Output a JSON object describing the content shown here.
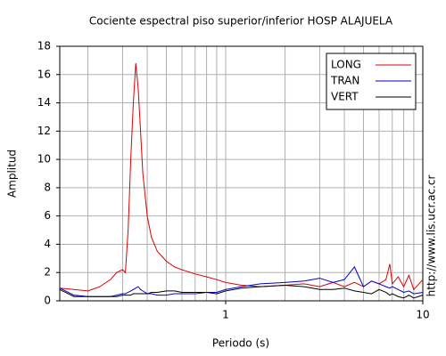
{
  "chart_data": {
    "type": "line",
    "title": "Cociente espectral piso superior/inferior  HOSP ALAJUELA",
    "x_label": "Periodo (s)",
    "y_label": "Amplitud",
    "annotation": "http://www.lis.ucr.ac.cr",
    "x_scale": "log",
    "grid": true,
    "legend": "upper right",
    "xlim": [
      0.144,
      10
    ],
    "xticks": [
      1,
      10
    ],
    "x_minor_ticks": [
      0.2,
      0.3,
      0.4,
      0.5,
      0.6,
      0.7,
      0.8,
      0.9,
      2,
      3,
      4,
      5,
      6,
      7,
      8,
      9
    ],
    "ylim": [
      0,
      18
    ],
    "yticks": [
      0,
      2,
      4,
      6,
      8,
      10,
      12,
      14,
      16,
      18
    ],
    "x": [
      0.144,
      0.17,
      0.2,
      0.23,
      0.26,
      0.28,
      0.3,
      0.31,
      0.32,
      0.33,
      0.34,
      0.35,
      0.36,
      0.37,
      0.38,
      0.4,
      0.42,
      0.45,
      0.5,
      0.55,
      0.6,
      0.7,
      0.8,
      0.9,
      1,
      1.2,
      1.5,
      2,
      2.5,
      3,
      3.5,
      4,
      4.5,
      5,
      5.5,
      6,
      6.5,
      6.8,
      7,
      7.5,
      8,
      8.5,
      9,
      10
    ],
    "series": [
      {
        "name": "LONG",
        "color": "#dd0000",
        "values": [
          0.9,
          0.8,
          0.7,
          1.0,
          1.5,
          2.0,
          2.2,
          2.0,
          5,
          10,
          14,
          16.8,
          15,
          12,
          9,
          6,
          4.5,
          3.5,
          2.8,
          2.4,
          2.2,
          1.9,
          1.7,
          1.5,
          1.3,
          1.1,
          1.0,
          1.1,
          1.2,
          1.0,
          1.3,
          1.0,
          1.3,
          1.0,
          1.4,
          1.2,
          1.5,
          2.6,
          1.2,
          1.7,
          1.0,
          1.8,
          0.8,
          1.5
        ]
      },
      {
        "name": "TRAN",
        "color": "#0000cc",
        "values": [
          0.9,
          0.4,
          0.3,
          0.3,
          0.3,
          0.4,
          0.5,
          0.5,
          0.6,
          0.7,
          0.8,
          0.9,
          1.0,
          0.8,
          0.7,
          0.5,
          0.5,
          0.4,
          0.4,
          0.5,
          0.5,
          0.5,
          0.6,
          0.6,
          0.8,
          1.0,
          1.2,
          1.3,
          1.4,
          1.6,
          1.3,
          1.5,
          2.4,
          1.0,
          1.4,
          1.2,
          1.0,
          0.9,
          1.0,
          0.8,
          0.6,
          0.7,
          0.5,
          0.6
        ]
      },
      {
        "name": "VERT",
        "color": "#000000",
        "values": [
          0.8,
          0.3,
          0.3,
          0.3,
          0.3,
          0.3,
          0.4,
          0.4,
          0.4,
          0.4,
          0.5,
          0.5,
          0.5,
          0.5,
          0.5,
          0.5,
          0.6,
          0.6,
          0.7,
          0.7,
          0.6,
          0.6,
          0.6,
          0.5,
          0.7,
          0.9,
          1.0,
          1.1,
          1.0,
          0.8,
          0.8,
          0.9,
          0.7,
          0.6,
          0.5,
          0.8,
          0.6,
          0.4,
          0.5,
          0.3,
          0.2,
          0.4,
          0.2,
          0.4
        ]
      }
    ]
  }
}
